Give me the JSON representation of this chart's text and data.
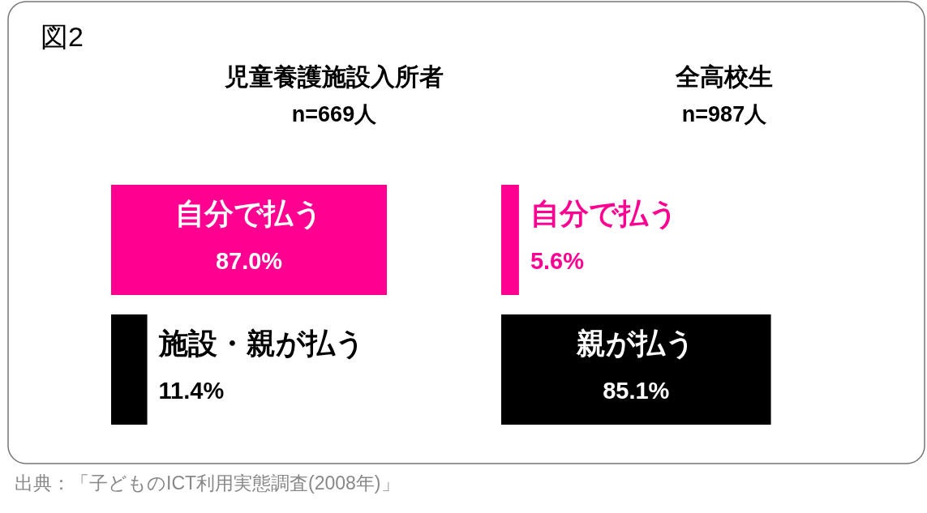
{
  "chart_data": [
    {
      "type": "bar",
      "orientation": "horizontal",
      "title": "児童養護施設入所者",
      "subtitle": "n=669人",
      "categories": [
        "自分で払う",
        "施設・親が払う"
      ],
      "values": [
        87.0,
        11.4
      ],
      "colors": [
        "#ff0090",
        "#000000"
      ],
      "value_labels": [
        "87.0%",
        "11.4%"
      ],
      "annotations": [
        "図2",
        "出典：「子どものICT利用実態調査(2008年)」"
      ]
    },
    {
      "type": "bar",
      "orientation": "horizontal",
      "title": "全高校生",
      "subtitle": "n=987人",
      "categories": [
        "自分で払う",
        "親が払う"
      ],
      "values": [
        5.6,
        85.1
      ],
      "colors": [
        "#ff0090",
        "#000000"
      ],
      "value_labels": [
        "5.6%",
        "85.1%"
      ]
    }
  ]
}
